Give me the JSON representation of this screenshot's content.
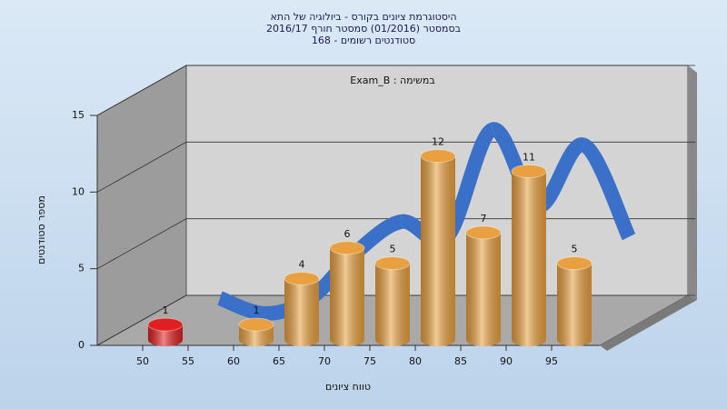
{
  "chart_data": {
    "type": "histogram3d",
    "title_lines": [
      "היסטוגרמת ציונים בקורס - ביולוגיה של התא",
      "בסמסטר (01/2016) סמסטר חורף 2016/17",
      "סטודנטים רשומים - 168"
    ],
    "annotation": "במשימה : Exam_B",
    "x_label": "טווח ציונים",
    "y_label": "מספר סטודנטים",
    "bins": [
      50,
      55,
      60,
      65,
      70,
      75,
      80,
      85,
      90,
      95,
      100
    ],
    "counts": [
      1,
      0,
      1,
      4,
      6,
      5,
      12,
      7,
      11,
      5
    ],
    "bar_colors": [
      "#e02020",
      "#e8a040",
      "#e8a040",
      "#e8a040",
      "#e8a040",
      "#e8a040",
      "#e8a040",
      "#e8a040",
      "#e8a040",
      "#e8a040"
    ],
    "curve_color": "#3a70c8",
    "xlim": [
      45,
      100
    ],
    "xticks": [
      50,
      55,
      60,
      65,
      70,
      75,
      80,
      85,
      90,
      95
    ],
    "ylim": [
      0,
      15
    ],
    "yticks": [
      0,
      5,
      10,
      15
    ],
    "grid": true
  }
}
